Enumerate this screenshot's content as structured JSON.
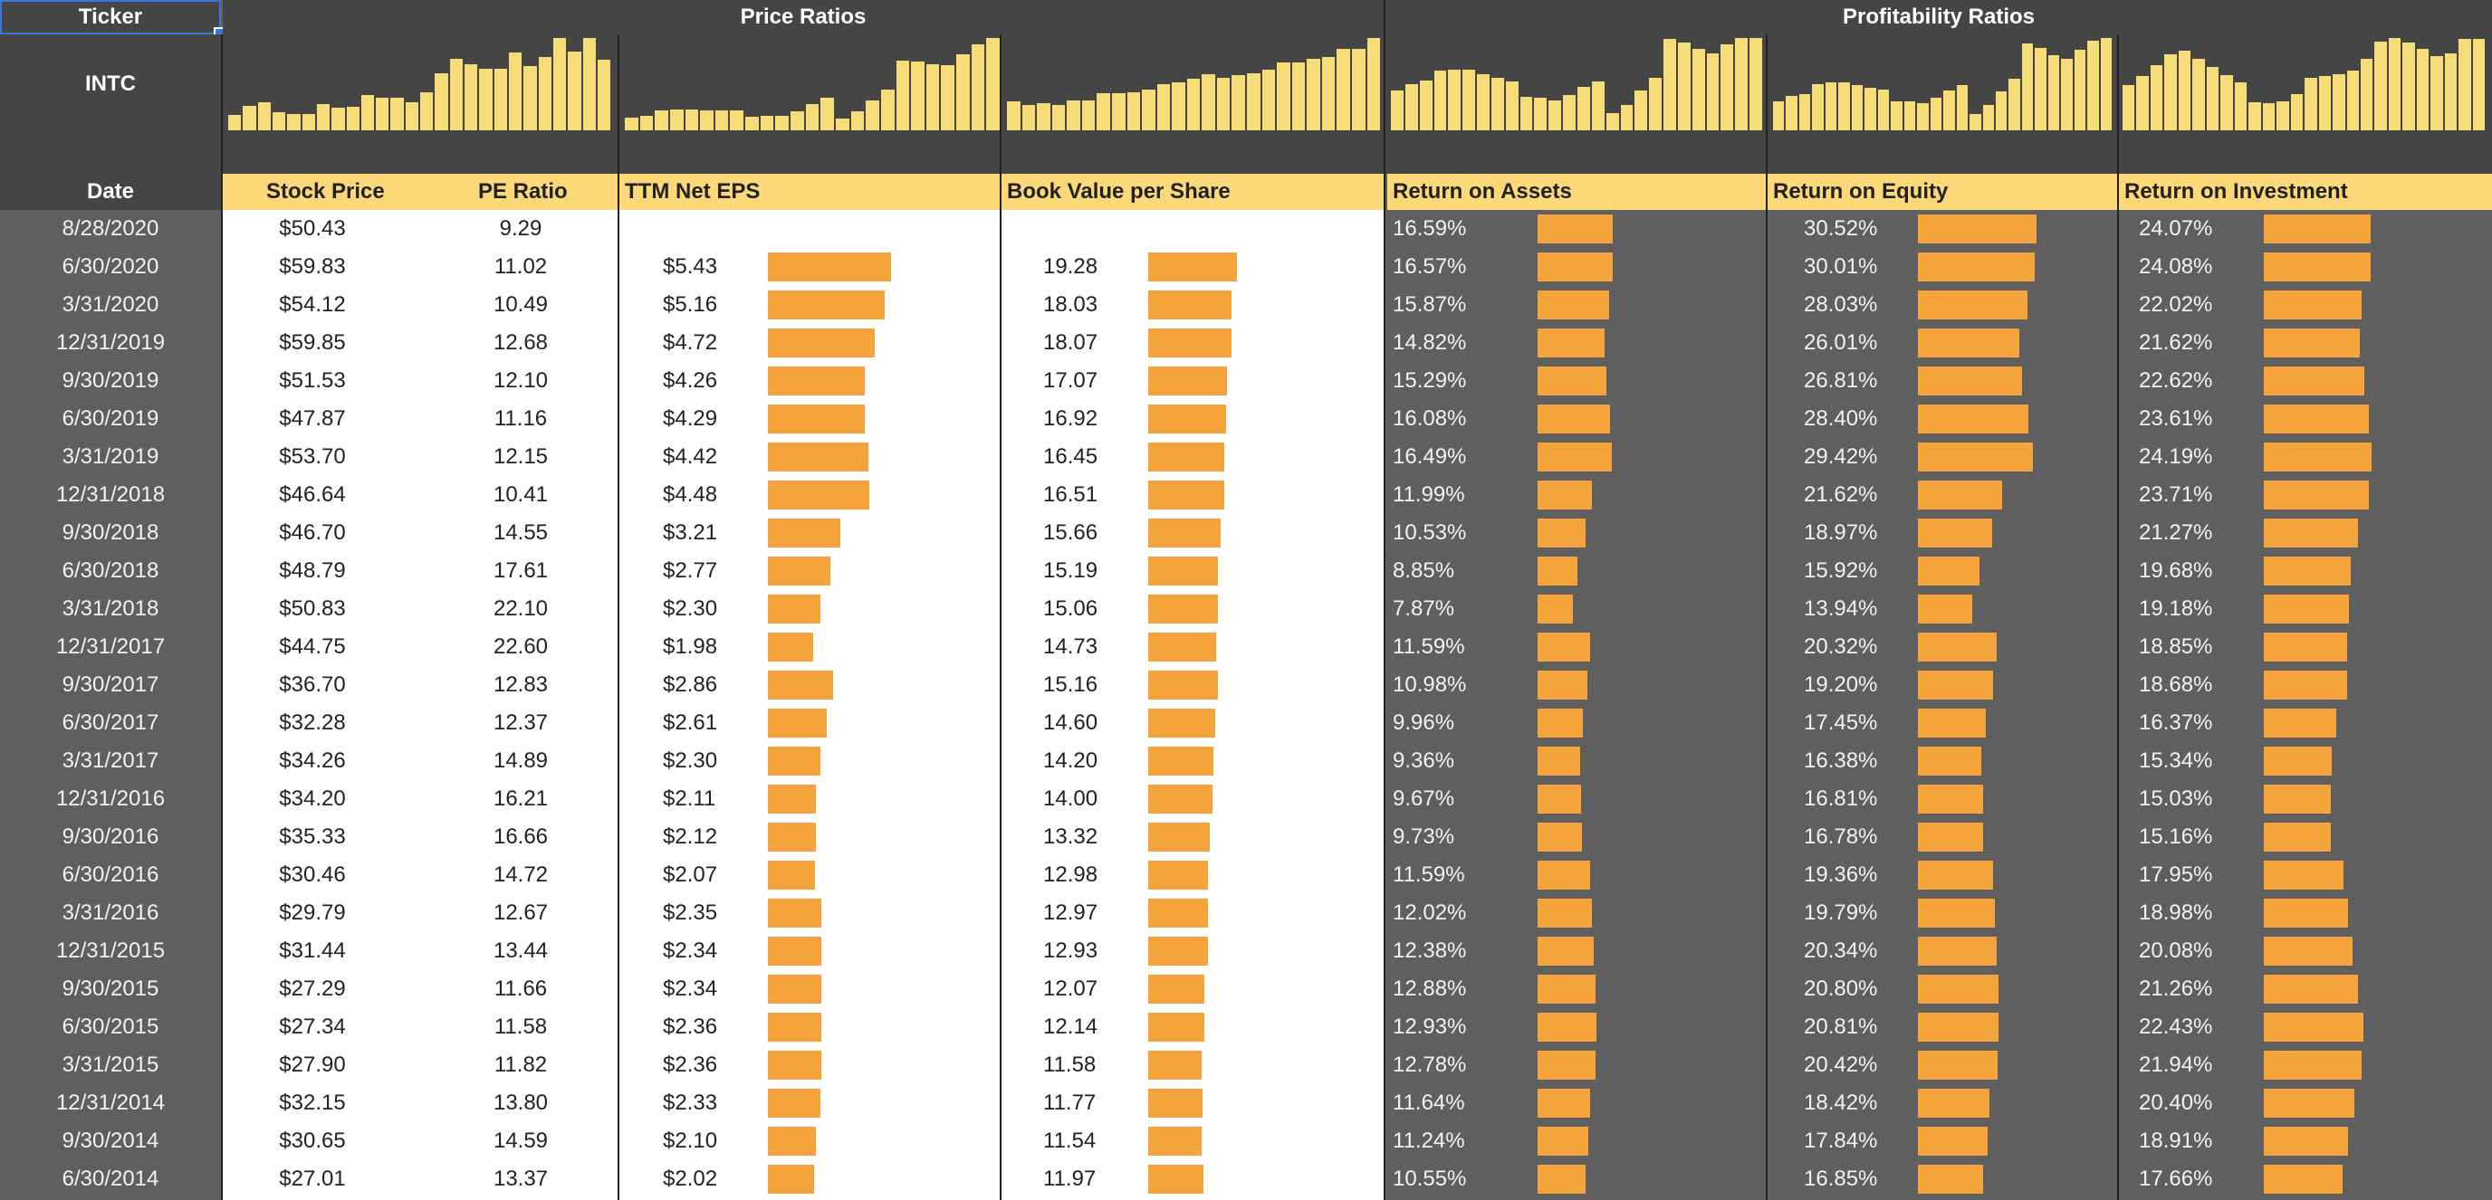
{
  "header": {
    "ticker_label": "Ticker",
    "price_ratios": "Price Ratios",
    "profitability_ratios": "Profitability Ratios",
    "ticker_value": "INTC",
    "date_label": "Date"
  },
  "columns": {
    "stock_price": "Stock Price",
    "pe_ratio": "PE Ratio",
    "ttm_eps": "TTM Net EPS",
    "bvps": "Book Value per Share",
    "roa": "Return on Assets",
    "roe": "Return on Equity",
    "roi": "Return on Investment"
  },
  "colors": {
    "bar": "#f4a43a",
    "sparkline": "#f7dd77",
    "subheader": "#fcd878"
  },
  "rows": [
    {
      "date": "8/28/2020",
      "price": "$50.43",
      "pe": "9.29",
      "eps": "",
      "bvps": "",
      "roa": "16.59%",
      "roe": "30.52%",
      "roi": "24.07%"
    },
    {
      "date": "6/30/2020",
      "price": "$59.83",
      "pe": "11.02",
      "eps": "$5.43",
      "bvps": "19.28",
      "roa": "16.57%",
      "roe": "30.01%",
      "roi": "24.08%"
    },
    {
      "date": "3/31/2020",
      "price": "$54.12",
      "pe": "10.49",
      "eps": "$5.16",
      "bvps": "18.03",
      "roa": "15.87%",
      "roe": "28.03%",
      "roi": "22.02%"
    },
    {
      "date": "12/31/2019",
      "price": "$59.85",
      "pe": "12.68",
      "eps": "$4.72",
      "bvps": "18.07",
      "roa": "14.82%",
      "roe": "26.01%",
      "roi": "21.62%"
    },
    {
      "date": "9/30/2019",
      "price": "$51.53",
      "pe": "12.10",
      "eps": "$4.26",
      "bvps": "17.07",
      "roa": "15.29%",
      "roe": "26.81%",
      "roi": "22.62%"
    },
    {
      "date": "6/30/2019",
      "price": "$47.87",
      "pe": "11.16",
      "eps": "$4.29",
      "bvps": "16.92",
      "roa": "16.08%",
      "roe": "28.40%",
      "roi": "23.61%"
    },
    {
      "date": "3/31/2019",
      "price": "$53.70",
      "pe": "12.15",
      "eps": "$4.42",
      "bvps": "16.45",
      "roa": "16.49%",
      "roe": "29.42%",
      "roi": "24.19%"
    },
    {
      "date": "12/31/2018",
      "price": "$46.64",
      "pe": "10.41",
      "eps": "$4.48",
      "bvps": "16.51",
      "roa": "11.99%",
      "roe": "21.62%",
      "roi": "23.71%"
    },
    {
      "date": "9/30/2018",
      "price": "$46.70",
      "pe": "14.55",
      "eps": "$3.21",
      "bvps": "15.66",
      "roa": "10.53%",
      "roe": "18.97%",
      "roi": "21.27%"
    },
    {
      "date": "6/30/2018",
      "price": "$48.79",
      "pe": "17.61",
      "eps": "$2.77",
      "bvps": "15.19",
      "roa": "8.85%",
      "roe": "15.92%",
      "roi": "19.68%"
    },
    {
      "date": "3/31/2018",
      "price": "$50.83",
      "pe": "22.10",
      "eps": "$2.30",
      "bvps": "15.06",
      "roa": "7.87%",
      "roe": "13.94%",
      "roi": "19.18%"
    },
    {
      "date": "12/31/2017",
      "price": "$44.75",
      "pe": "22.60",
      "eps": "$1.98",
      "bvps": "14.73",
      "roa": "11.59%",
      "roe": "20.32%",
      "roi": "18.85%"
    },
    {
      "date": "9/30/2017",
      "price": "$36.70",
      "pe": "12.83",
      "eps": "$2.86",
      "bvps": "15.16",
      "roa": "10.98%",
      "roe": "19.20%",
      "roi": "18.68%"
    },
    {
      "date": "6/30/2017",
      "price": "$32.28",
      "pe": "12.37",
      "eps": "$2.61",
      "bvps": "14.60",
      "roa": "9.96%",
      "roe": "17.45%",
      "roi": "16.37%"
    },
    {
      "date": "3/31/2017",
      "price": "$34.26",
      "pe": "14.89",
      "eps": "$2.30",
      "bvps": "14.20",
      "roa": "9.36%",
      "roe": "16.38%",
      "roi": "15.34%"
    },
    {
      "date": "12/31/2016",
      "price": "$34.20",
      "pe": "16.21",
      "eps": "$2.11",
      "bvps": "14.00",
      "roa": "9.67%",
      "roe": "16.81%",
      "roi": "15.03%"
    },
    {
      "date": "9/30/2016",
      "price": "$35.33",
      "pe": "16.66",
      "eps": "$2.12",
      "bvps": "13.32",
      "roa": "9.73%",
      "roe": "16.78%",
      "roi": "15.16%"
    },
    {
      "date": "6/30/2016",
      "price": "$30.46",
      "pe": "14.72",
      "eps": "$2.07",
      "bvps": "12.98",
      "roa": "11.59%",
      "roe": "19.36%",
      "roi": "17.95%"
    },
    {
      "date": "3/31/2016",
      "price": "$29.79",
      "pe": "12.67",
      "eps": "$2.35",
      "bvps": "12.97",
      "roa": "12.02%",
      "roe": "19.79%",
      "roi": "18.98%"
    },
    {
      "date": "12/31/2015",
      "price": "$31.44",
      "pe": "13.44",
      "eps": "$2.34",
      "bvps": "12.93",
      "roa": "12.38%",
      "roe": "20.34%",
      "roi": "20.08%"
    },
    {
      "date": "9/30/2015",
      "price": "$27.29",
      "pe": "11.66",
      "eps": "$2.34",
      "bvps": "12.07",
      "roa": "12.88%",
      "roe": "20.80%",
      "roi": "21.26%"
    },
    {
      "date": "6/30/2015",
      "price": "$27.34",
      "pe": "11.58",
      "eps": "$2.36",
      "bvps": "12.14",
      "roa": "12.93%",
      "roe": "20.81%",
      "roi": "22.43%"
    },
    {
      "date": "3/31/2015",
      "price": "$27.90",
      "pe": "11.82",
      "eps": "$2.36",
      "bvps": "11.58",
      "roa": "12.78%",
      "roe": "20.42%",
      "roi": "21.94%"
    },
    {
      "date": "12/31/2014",
      "price": "$32.15",
      "pe": "13.80",
      "eps": "$2.33",
      "bvps": "11.77",
      "roa": "11.64%",
      "roe": "18.42%",
      "roi": "20.40%"
    },
    {
      "date": "9/30/2014",
      "price": "$30.65",
      "pe": "14.59",
      "eps": "$2.10",
      "bvps": "11.54",
      "roa": "11.24%",
      "roe": "17.84%",
      "roi": "18.91%"
    },
    {
      "date": "6/30/2014",
      "price": "$27.01",
      "pe": "13.37",
      "eps": "$2.02",
      "bvps": "11.97",
      "roa": "10.55%",
      "roe": "16.85%",
      "roi": "17.66%"
    }
  ]
}
